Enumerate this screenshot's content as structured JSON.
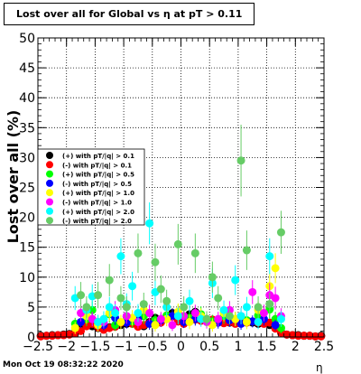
{
  "chart_data": {
    "type": "scatter",
    "title": "Lost over all for Global vs   η at pT > 0.11",
    "xlabel": "η",
    "ylabel": "Lost over all (%)",
    "xlim": [
      -2.5,
      2.5
    ],
    "ylim": [
      0,
      50
    ],
    "xticks": [
      -2.5,
      -2,
      -1.5,
      -1,
      -0.5,
      0,
      0.5,
      1,
      1.5,
      2,
      2.5
    ],
    "xtick_labels": [
      "−2.5",
      "−2",
      "−1.5",
      "−1",
      "−0.5",
      "0",
      "0.5",
      "1",
      "1.5",
      "2",
      "2.5"
    ],
    "yticks": [
      0,
      5,
      10,
      15,
      20,
      25,
      30,
      35,
      40,
      45,
      50
    ],
    "ytick_labels": [
      "0",
      "5",
      "10",
      "15",
      "20",
      "25",
      "30",
      "35",
      "40",
      "45",
      "50"
    ],
    "grid": true,
    "legend_position": "left-middle",
    "series": [
      {
        "name": "(+) with pT/|q| > 0.1",
        "color": "#000000",
        "x": [
          -2.45,
          -2.35,
          -2.25,
          -2.15,
          -2.05,
          -1.95,
          -1.85,
          -1.75,
          -1.65,
          -1.55,
          -1.45,
          -1.35,
          -1.25,
          -1.15,
          -1.05,
          -0.95,
          -0.85,
          -0.75,
          -0.65,
          -0.55,
          -0.45,
          -0.35,
          -0.25,
          -0.15,
          -0.05,
          0.05,
          0.15,
          0.25,
          0.35,
          0.45,
          0.55,
          0.65,
          0.75,
          0.85,
          0.95,
          1.05,
          1.15,
          1.25,
          1.35,
          1.45,
          1.55,
          1.65,
          1.75,
          1.85,
          1.95,
          2.05,
          2.15,
          2.25,
          2.35,
          2.45
        ],
        "y": [
          0.2,
          0.2,
          0.3,
          0.3,
          0.4,
          0.5,
          0.8,
          1.5,
          2.0,
          1.8,
          1.5,
          1.4,
          1.6,
          1.8,
          2.0,
          2.2,
          2.5,
          2.0,
          1.8,
          2.5,
          3.2,
          2.8,
          3.5,
          4.0,
          3.0,
          2.5,
          3.8,
          4.2,
          3.2,
          3.0,
          2.7,
          2.6,
          2.5,
          2.4,
          2.3,
          2.8,
          2.6,
          2.4,
          2.2,
          2.5,
          2.0,
          1.5,
          0.8,
          0.4,
          0.3,
          0.3,
          0.2,
          0.2,
          0.1,
          0.2
        ],
        "err": [
          0.2,
          0.2,
          0.2,
          0.2,
          0.2,
          0.3,
          0.4,
          0.5,
          0.6,
          0.6,
          0.5,
          0.5,
          0.5,
          0.5,
          0.6,
          0.6,
          0.6,
          0.6,
          0.6,
          0.6,
          0.7,
          0.7,
          0.7,
          0.8,
          0.7,
          0.7,
          0.7,
          0.8,
          0.7,
          0.7,
          0.6,
          0.6,
          0.6,
          0.6,
          0.6,
          0.6,
          0.6,
          0.6,
          0.6,
          0.6,
          0.6,
          0.5,
          0.4,
          0.3,
          0.2,
          0.2,
          0.2,
          0.2,
          0.1,
          0.2
        ]
      },
      {
        "name": "(-) with pT/|q| > 0.1",
        "color": "#ff0000",
        "x": [
          -2.45,
          -2.35,
          -2.25,
          -2.15,
          -2.05,
          -1.95,
          -1.85,
          -1.75,
          -1.65,
          -1.55,
          -1.45,
          -1.35,
          -1.25,
          -1.15,
          -1.05,
          -0.95,
          -0.85,
          -0.75,
          -0.65,
          -0.55,
          -0.45,
          -0.35,
          -0.25,
          -0.15,
          -0.05,
          0.05,
          0.15,
          0.25,
          0.35,
          0.45,
          0.55,
          0.65,
          0.75,
          0.85,
          0.95,
          1.05,
          1.15,
          1.25,
          1.35,
          1.45,
          1.55,
          1.65,
          1.75,
          1.85,
          1.95,
          2.05,
          2.15,
          2.25,
          2.35,
          2.45
        ],
        "y": [
          0.1,
          0.2,
          0.2,
          0.3,
          0.3,
          0.4,
          0.6,
          1.0,
          1.8,
          2.2,
          1.6,
          1.2,
          1.5,
          1.7,
          2.4,
          2.6,
          2.2,
          1.7,
          2.0,
          2.3,
          2.6,
          2.4,
          3.0,
          3.4,
          2.6,
          2.2,
          3.0,
          2.9,
          2.7,
          2.6,
          2.9,
          2.4,
          2.3,
          2.5,
          2.2,
          2.6,
          2.4,
          2.6,
          2.4,
          2.2,
          2.4,
          1.4,
          0.7,
          0.4,
          0.3,
          0.2,
          0.2,
          0.2,
          0.1,
          0.1
        ],
        "err": [
          0.1,
          0.2,
          0.2,
          0.2,
          0.2,
          0.3,
          0.4,
          0.5,
          0.6,
          0.6,
          0.5,
          0.5,
          0.5,
          0.5,
          0.6,
          0.6,
          0.6,
          0.6,
          0.6,
          0.6,
          0.7,
          0.7,
          0.7,
          0.8,
          0.7,
          0.7,
          0.7,
          0.8,
          0.7,
          0.7,
          0.6,
          0.6,
          0.6,
          0.6,
          0.6,
          0.6,
          0.6,
          0.6,
          0.6,
          0.6,
          0.6,
          0.5,
          0.4,
          0.3,
          0.2,
          0.2,
          0.2,
          0.2,
          0.1,
          0.1
        ]
      },
      {
        "name": "(+) with pT/|q| > 0.5",
        "color": "#00ff00",
        "x": [
          -1.85,
          -1.65,
          -1.55,
          -1.45,
          -1.25,
          -1.15,
          -0.95,
          -0.85,
          -0.65,
          -0.45,
          -0.25,
          -0.05,
          0.15,
          0.35,
          0.55,
          0.75,
          0.95,
          1.15,
          1.35,
          1.55,
          1.65,
          1.75
        ],
        "y": [
          2.2,
          3.0,
          4.5,
          2.5,
          3.8,
          2.0,
          3.4,
          2.6,
          3.5,
          2.8,
          3.6,
          4.0,
          3.2,
          3.8,
          2.6,
          3.5,
          3.0,
          2.8,
          3.6,
          4.6,
          3.0,
          1.5
        ],
        "err": [
          1.0,
          1.2,
          1.5,
          1.2,
          1.4,
          1.0,
          1.3,
          1.1,
          1.3,
          1.1,
          1.3,
          1.4,
          1.2,
          1.3,
          1.1,
          1.3,
          1.2,
          1.1,
          1.3,
          1.5,
          1.2,
          0.9
        ]
      },
      {
        "name": "(-) with pT/|q| > 0.5",
        "color": "#0000ff",
        "x": [
          -1.75,
          -1.55,
          -1.35,
          -1.15,
          -0.95,
          -0.75,
          -0.55,
          -0.35,
          -0.15,
          0.05,
          0.25,
          0.45,
          0.65,
          0.85,
          1.05,
          1.25,
          1.45,
          1.65
        ],
        "y": [
          2.5,
          3.0,
          2.0,
          3.2,
          2.4,
          3.0,
          2.2,
          2.8,
          3.5,
          2.5,
          3.0,
          2.6,
          2.4,
          2.8,
          2.2,
          2.6,
          3.0,
          2.0
        ],
        "err": [
          1.0,
          1.1,
          0.9,
          1.2,
          1.0,
          1.1,
          1.0,
          1.1,
          1.2,
          1.0,
          1.1,
          1.0,
          1.0,
          1.1,
          1.0,
          1.0,
          1.1,
          0.9
        ]
      },
      {
        "name": "(+) with pT/|q| > 1.0",
        "color": "#ffff00",
        "x": [
          -1.85,
          -1.65,
          -1.45,
          -1.25,
          -1.05,
          -0.85,
          -0.65,
          -0.45,
          -0.25,
          -0.05,
          0.15,
          0.35,
          0.55,
          0.75,
          0.95,
          1.15,
          1.35,
          1.55,
          1.65
        ],
        "y": [
          1.5,
          3.5,
          2.0,
          4.0,
          2.5,
          3.2,
          4.5,
          2.0,
          3.0,
          4.2,
          2.5,
          3.5,
          2.0,
          4.0,
          3.0,
          2.5,
          4.5,
          8.5,
          11.5
        ],
        "err": [
          1.0,
          1.3,
          1.1,
          1.4,
          1.2,
          1.3,
          1.5,
          1.1,
          1.2,
          1.4,
          1.2,
          1.3,
          1.1,
          1.4,
          1.2,
          1.2,
          1.5,
          2.2,
          2.5
        ]
      },
      {
        "name": "(-) with pT/|q| > 1.0",
        "color": "#ff00ff",
        "x": [
          -1.75,
          -1.55,
          -1.35,
          -1.15,
          -0.95,
          -0.75,
          -0.55,
          -0.35,
          -0.15,
          0.05,
          0.25,
          0.45,
          0.65,
          0.85,
          1.05,
          1.25,
          1.45,
          1.55,
          1.65,
          1.75
        ],
        "y": [
          4.0,
          3.0,
          2.5,
          4.5,
          3.5,
          2.5,
          4.0,
          3.0,
          2.0,
          3.5,
          4.0,
          2.5,
          3.0,
          4.5,
          3.5,
          7.5,
          4.0,
          7.0,
          6.5,
          3.5
        ],
        "err": [
          1.4,
          1.2,
          1.1,
          1.5,
          1.3,
          1.1,
          1.4,
          1.2,
          1.0,
          1.3,
          1.4,
          1.1,
          1.2,
          1.5,
          1.3,
          2.0,
          1.4,
          2.0,
          1.9,
          1.3
        ]
      },
      {
        "name": "(+) with pT/|q| > 2.0",
        "color": "#00ffff",
        "x": [
          -1.85,
          -1.65,
          -1.55,
          -1.45,
          -1.35,
          -1.25,
          -1.15,
          -1.05,
          -0.95,
          -0.85,
          -0.75,
          -0.55,
          -0.45,
          -0.25,
          -0.05,
          0.15,
          0.35,
          0.55,
          0.75,
          0.95,
          1.05,
          1.15,
          1.35,
          1.55,
          1.75
        ],
        "y": [
          6.5,
          4.5,
          6.8,
          2.5,
          3.0,
          5.0,
          4.0,
          13.5,
          5.5,
          8.5,
          4.0,
          19.0,
          7.5,
          5.0,
          3.5,
          6.0,
          3.0,
          9.0,
          4.5,
          9.5,
          3.5,
          5.0,
          2.5,
          13.5,
          3.0
        ],
        "err": [
          2.0,
          1.6,
          2.0,
          1.2,
          1.3,
          1.7,
          1.5,
          3.0,
          1.8,
          2.4,
          1.5,
          3.5,
          2.2,
          1.7,
          1.4,
          1.9,
          1.3,
          2.5,
          1.6,
          2.5,
          1.4,
          1.7,
          1.2,
          3.0,
          1.3
        ]
      },
      {
        "name": "(-) with pT/|q| > 2.0",
        "color": "#66cc66",
        "x": [
          -1.75,
          -1.65,
          -1.45,
          -1.25,
          -1.05,
          -0.95,
          -0.75,
          -0.65,
          -0.45,
          -0.35,
          -0.25,
          -0.05,
          0.05,
          0.25,
          0.45,
          0.55,
          0.65,
          0.85,
          1.05,
          1.15,
          1.35,
          1.55,
          1.75
        ],
        "y": [
          7.0,
          5.0,
          7.0,
          9.5,
          6.5,
          5.0,
          14.0,
          5.5,
          12.5,
          8.0,
          6.0,
          15.5,
          5.0,
          14.0,
          3.0,
          10.0,
          6.5,
          3.5,
          29.5,
          14.5,
          5.0,
          5.5,
          17.5
        ],
        "err": [
          2.2,
          1.8,
          2.2,
          2.7,
          2.0,
          1.8,
          3.3,
          1.9,
          3.1,
          2.3,
          1.9,
          3.4,
          1.8,
          3.3,
          1.3,
          2.6,
          2.0,
          1.4,
          6.0,
          3.3,
          1.8,
          1.9,
          3.6
        ]
      }
    ]
  },
  "footer": {
    "datestamp": "Mon Oct 19 08:32:22 2020"
  }
}
